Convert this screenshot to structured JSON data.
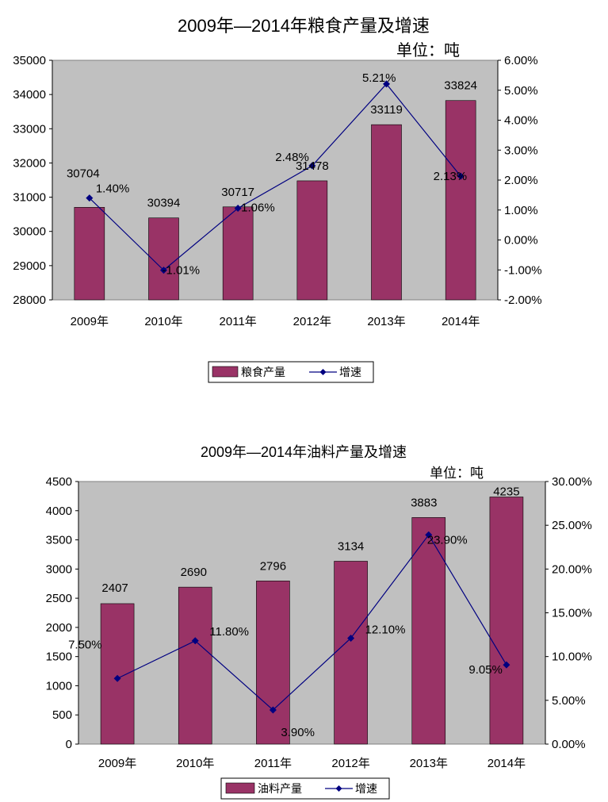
{
  "chart_data": [
    {
      "type": "bar",
      "title": "2009年—2014年粮食产量及增速",
      "unit_label": "单位：吨",
      "categories": [
        "2009年",
        "2010年",
        "2011年",
        "2012年",
        "2013年",
        "2014年"
      ],
      "series": [
        {
          "name": "粮食产量",
          "type": "bar",
          "axis": "left",
          "values": [
            30704,
            30394,
            30717,
            31478,
            33119,
            33824
          ],
          "labels": [
            "30704",
            "30394",
            "30717",
            "31478",
            "33119",
            "33824"
          ]
        },
        {
          "name": "增速",
          "type": "line",
          "axis": "right",
          "values": [
            1.4,
            -1.01,
            1.06,
            2.48,
            5.21,
            2.13
          ],
          "labels": [
            "1.40%",
            "-1.01%",
            "1.06%",
            "2.48%",
            "5.21%",
            "2.13%"
          ]
        }
      ],
      "y_left": {
        "min": 28000,
        "max": 35000,
        "step": 1000,
        "ticks": [
          "28000",
          "29000",
          "30000",
          "31000",
          "32000",
          "33000",
          "34000",
          "35000"
        ]
      },
      "y_right": {
        "min": -2,
        "max": 6,
        "step": 1,
        "ticks": [
          "-2.00%",
          "-1.00%",
          "0.00%",
          "1.00%",
          "2.00%",
          "3.00%",
          "4.00%",
          "5.00%",
          "6.00%"
        ]
      },
      "legend": [
        "粮食产量",
        "增速"
      ],
      "legend_position": "bottom",
      "colors": {
        "bar": "#993366",
        "line": "#000080",
        "plot_bg": "#c0c0c0"
      },
      "grid": false
    },
    {
      "type": "bar",
      "title": "2009年—2014年油料产量及增速",
      "unit_label": "单位：吨",
      "categories": [
        "2009年",
        "2010年",
        "2011年",
        "2012年",
        "2013年",
        "2014年"
      ],
      "series": [
        {
          "name": "油料产量",
          "type": "bar",
          "axis": "left",
          "values": [
            2407,
            2690,
            2796,
            3134,
            3883,
            4235
          ],
          "labels": [
            "2407",
            "2690",
            "2796",
            "3134",
            "3883",
            "4235"
          ]
        },
        {
          "name": "增速",
          "type": "line",
          "axis": "right",
          "values": [
            7.5,
            11.8,
            3.9,
            12.1,
            23.9,
            9.05
          ],
          "labels": [
            "7.50%",
            "11.80%",
            "3.90%",
            "12.10%",
            "23.90%",
            "9.05%"
          ]
        }
      ],
      "y_left": {
        "min": 0,
        "max": 4500,
        "step": 500,
        "ticks": [
          "0",
          "500",
          "1000",
          "1500",
          "2000",
          "2500",
          "3000",
          "3500",
          "4000",
          "4500"
        ]
      },
      "y_right": {
        "min": 0,
        "max": 30,
        "step": 5,
        "ticks": [
          "0.00%",
          "5.00%",
          "10.00%",
          "15.00%",
          "20.00%",
          "25.00%",
          "30.00%"
        ]
      },
      "legend": [
        "油料产量",
        "增速"
      ],
      "legend_position": "bottom",
      "colors": {
        "bar": "#993366",
        "line": "#000080",
        "plot_bg": "#c0c0c0"
      },
      "grid": false
    }
  ]
}
